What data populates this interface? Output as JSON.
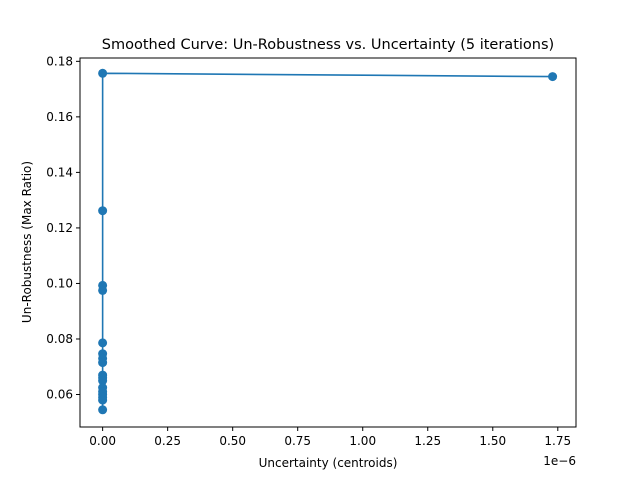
{
  "chart_data": {
    "type": "line",
    "title": "Smoothed Curve: Un-Robustness vs. Uncertainty (5 iterations)",
    "xlabel": "Uncertainty (centroids)",
    "ylabel": "Un-Robustness (Max Ratio)",
    "x_offset_text": "1e−6",
    "xlim": [
      -0.087,
      1.82
    ],
    "ylim": [
      0.0483,
      0.1812
    ],
    "x_ticks": [
      0.0,
      0.25,
      0.5,
      0.75,
      1.0,
      1.25,
      1.5,
      1.75
    ],
    "x_tick_labels": [
      "0.00",
      "0.25",
      "0.50",
      "0.75",
      "1.00",
      "1.25",
      "1.50",
      "1.75"
    ],
    "y_ticks": [
      0.06,
      0.08,
      0.1,
      0.12,
      0.14,
      0.16,
      0.18
    ],
    "y_tick_labels": [
      "0.06",
      "0.08",
      "0.10",
      "0.12",
      "0.14",
      "0.16",
      "0.18"
    ],
    "grid": false,
    "legend": "none",
    "series": [
      {
        "color": "#1f77b4",
        "x": [
          1.73,
          0.0,
          0.0,
          0.0,
          0.0,
          0.0,
          0.0,
          0.0,
          0.0,
          0.0,
          0.0,
          0.0,
          0.0,
          0.0,
          0.0,
          0.0,
          0.0,
          0.0
        ],
        "y": [
          0.1745,
          0.1757,
          0.1262,
          0.0993,
          0.0975,
          0.0786,
          0.0747,
          0.073,
          0.0715,
          0.067,
          0.066,
          0.065,
          0.0625,
          0.061,
          0.06,
          0.059,
          0.058,
          0.0545
        ]
      }
    ]
  }
}
